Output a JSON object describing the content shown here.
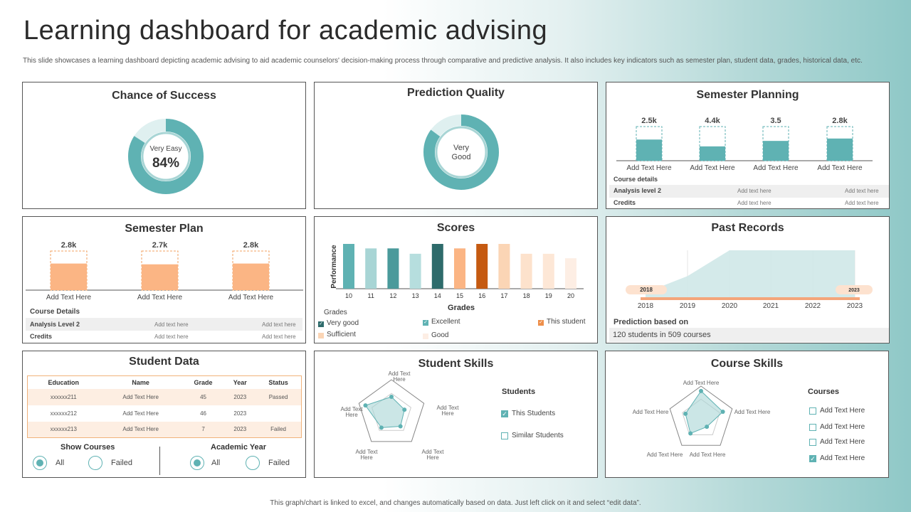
{
  "header": {
    "title": "Learning dashboard for academic advising",
    "subtitle": "This slide showcases a learning dashboard depicting academic advising to aid academic counselors' decision-making process through comparative and predictive analysis. It also includes key indicators such as semester plan, student data, grades, historical data, etc."
  },
  "footer": "This graph/chart is linked to excel, and changes automatically based on data. Just left click on it and select “edit data”.",
  "colors": {
    "teal": "#5fb2b3",
    "teal_light": "#a8d5d5",
    "orange": "#fbb584",
    "dark_teal": "#2e6b6b",
    "dark_orange": "#c55a11"
  },
  "chance_of_success": {
    "title": "Chance of Success",
    "label": "Very Easy",
    "value": "84%",
    "fraction": 0.84
  },
  "prediction_quality": {
    "title": "Prediction Quality",
    "label_line1": "Very",
    "label_line2": "Good",
    "fraction": 0.85
  },
  "semester_planning": {
    "title": "Semester Planning",
    "bars": [
      {
        "label": "Add Text Here",
        "value": "2.5k",
        "fill": 0.62
      },
      {
        "label": "Add Text Here",
        "value": "4.4k",
        "fill": 0.42
      },
      {
        "label": "Add Text Here",
        "value": "3.5",
        "fill": 0.58
      },
      {
        "label": "Add Text Here",
        "value": "2.8k",
        "fill": 0.65
      }
    ],
    "details_heading": "Course details",
    "rows": [
      {
        "label": "Analysis  level 2",
        "c1": "Add text here",
        "c2": "Add text here"
      },
      {
        "label": "Credits",
        "c1": "Add text here",
        "c2": "Add text here"
      }
    ]
  },
  "semester_plan": {
    "title": "Semester Plan",
    "bars": [
      {
        "label": "Add Text Here",
        "value": "2.8k",
        "fill": 0.68
      },
      {
        "label": "Add Text Here",
        "value": "2.7k",
        "fill": 0.66
      },
      {
        "label": "Add Text Here",
        "value": "2.8k",
        "fill": 0.68
      }
    ],
    "details_heading": "Course Details",
    "rows": [
      {
        "label": "Analysis  Level 2",
        "c1": "Add text here",
        "c2": "Add text here"
      },
      {
        "label": "Credits",
        "c1": "Add text here",
        "c2": "Add text here"
      }
    ]
  },
  "scores": {
    "title": "Scores",
    "chart_data": {
      "type": "bar",
      "categories": [
        "10",
        "11",
        "12",
        "13",
        "14",
        "15",
        "16",
        "17",
        "18",
        "19",
        "20"
      ],
      "values": [
        100,
        90,
        90,
        78,
        100,
        90,
        100,
        100,
        78,
        78,
        68
      ],
      "colors": [
        "#5fb2b3",
        "#a8d5d5",
        "#4a9a9b",
        "#b6dede",
        "#2e6b6b",
        "#fbb584",
        "#c55a11",
        "#fbd5b5",
        "#fde2cc",
        "#fde7d6",
        "#fdeee4"
      ],
      "ylim": [
        0,
        100
      ],
      "xlabel": "Grades",
      "ylabel": "Performance"
    },
    "legend_heading": "Grades",
    "legend": [
      {
        "label": "Very good",
        "color": "#2e6b6b",
        "checked": true
      },
      {
        "label": "Excellent",
        "color": "#5fb2b3",
        "checked": true
      },
      {
        "label": "This student",
        "color": "#ee8f4a",
        "checked": true
      },
      {
        "label": "Sufficient",
        "color": "#fbd5b5",
        "checked": false
      },
      {
        "label": "Good",
        "color": "#fdeee4",
        "checked": false
      }
    ]
  },
  "past_records": {
    "title": "Past Records",
    "chart_data": {
      "type": "area",
      "x": [
        "2018",
        "2019",
        "2020",
        "2021",
        "2022",
        "2023"
      ],
      "values": [
        0.1,
        0.45,
        1,
        1,
        1,
        1
      ],
      "ylim": [
        0,
        1
      ]
    },
    "range_start": "2018",
    "range_end": "2023",
    "prediction_label": "Prediction based on",
    "prediction_value": "120 students in 509 courses"
  },
  "student_data": {
    "title": "Student Data",
    "columns": [
      "Education",
      "Name",
      "Grade",
      "Year",
      "Status"
    ],
    "rows": [
      [
        "xxxxxx211",
        "Add Text Here",
        "45",
        "2023",
        "Passed"
      ],
      [
        "xxxxxx212",
        "Add Text Here",
        "46",
        "2023",
        ""
      ],
      [
        "xxxxxx213",
        "Add Text Here",
        "7",
        "2023",
        "Failed"
      ]
    ],
    "show_courses": {
      "label": "Show Courses",
      "options": [
        "All",
        "Failed"
      ]
    },
    "academic_year": {
      "label": "Academic Year",
      "options": [
        "All",
        "Failed"
      ]
    }
  },
  "student_skills": {
    "title": "Student Skills",
    "axes": [
      "Add Text Here",
      "Add Text Here",
      "Add Text Here",
      "Add Text Here",
      "Add Text Here"
    ],
    "chart_data": {
      "type": "radar",
      "values": [
        0.5,
        0.4,
        0.45,
        0.5,
        0.8
      ]
    },
    "legend_heading": "Students",
    "legend": [
      {
        "label": "This Students",
        "checked": true
      },
      {
        "label": "Similar Students",
        "checked": false
      }
    ]
  },
  "course_skills": {
    "title": "Course Skills",
    "axes": [
      "Add Text Here",
      "Add Text Here",
      "Add Text Here",
      "Add Text Here",
      "Add Text Here"
    ],
    "chart_data": {
      "type": "radar",
      "values": [
        0.85,
        0.7,
        0.3,
        0.55,
        0.5
      ]
    },
    "legend_heading": "Courses",
    "legend": [
      {
        "label": "Add Text Here",
        "checked": false
      },
      {
        "label": "Add Text Here",
        "checked": false
      },
      {
        "label": "Add Text Here",
        "checked": false
      },
      {
        "label": "Add Text Here",
        "checked": true
      }
    ]
  }
}
